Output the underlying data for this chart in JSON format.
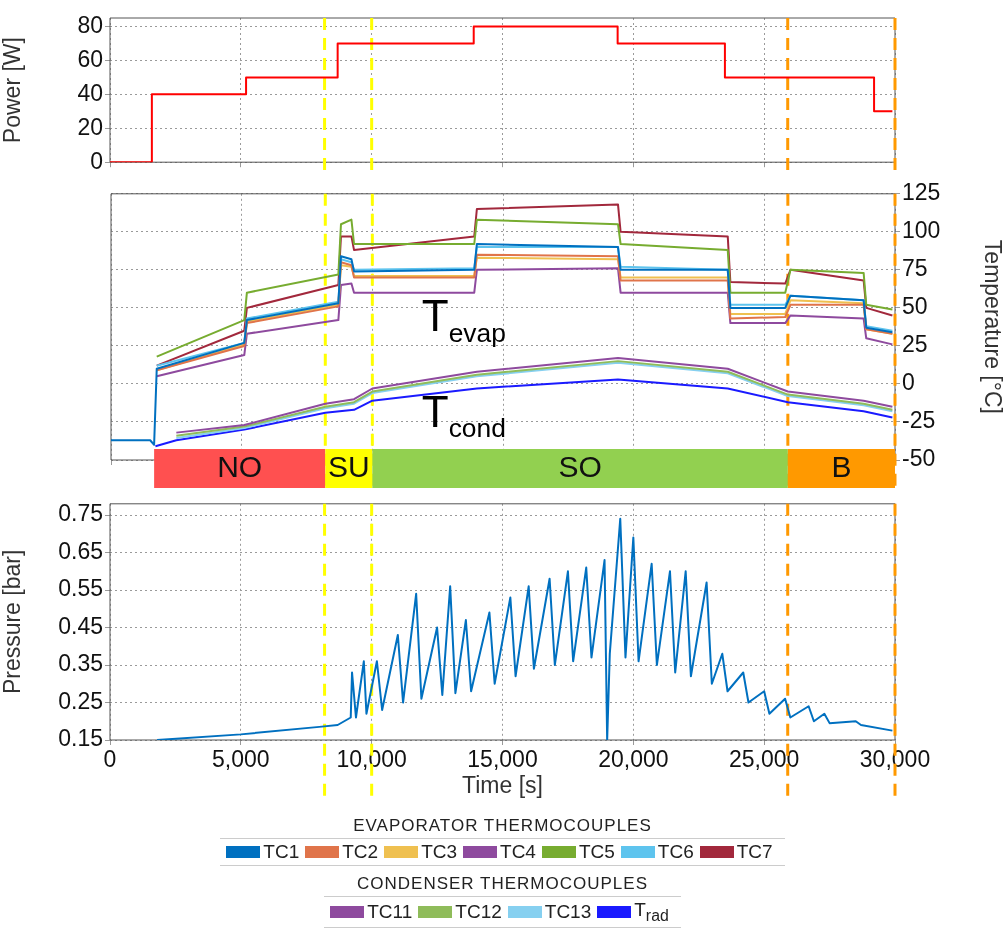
{
  "chart_data": [
    {
      "type": "step",
      "ylabel": "Power [W]",
      "xlim": [
        0,
        30000
      ],
      "xticks": [
        0,
        5000,
        10000,
        15000,
        20000,
        25000,
        30000
      ],
      "ylim": [
        0,
        85
      ],
      "yticks": [
        0,
        20,
        40,
        60,
        80
      ],
      "grid": true,
      "tick_labels": "y",
      "series": [
        {
          "color": "#ff0000",
          "x": [
            0,
            1600,
            5200,
            8700,
            13900,
            19400,
            23500,
            29200,
            29900
          ],
          "values": [
            0,
            40,
            50,
            70,
            80,
            70,
            50,
            30,
            30
          ]
        }
      ],
      "ref_lines": [
        {
          "axis": "x",
          "value": 8200,
          "color": "#ffff00",
          "line_style": "dashed"
        },
        {
          "axis": "x",
          "value": 10000,
          "color": "#ffff00",
          "line_style": "dashed"
        },
        {
          "axis": "x",
          "value": 25900,
          "color": "#ff9900",
          "line_style": "dashed"
        },
        {
          "axis": "x",
          "value": 30000,
          "color": "#ff9900",
          "line_style": "dashed"
        }
      ]
    },
    {
      "type": "line",
      "y2label": "Temperature [°C]",
      "xlim": [
        0,
        30000
      ],
      "xticks": [
        0,
        5000,
        10000,
        15000,
        20000,
        25000,
        30000
      ],
      "y2lim": [
        -50,
        125
      ],
      "y2ticks": [
        -50,
        -25,
        0,
        25,
        50,
        75,
        100,
        125
      ],
      "grid": true,
      "tick_labels": "y",
      "legend": "bottom",
      "legend_title": "EVAPORATOR THERMOCOUPLES",
      "series": [
        {
          "name": "TC1",
          "color": "#0070c0",
          "axis": "y2",
          "x": [
            0,
            1500,
            1650,
            1750,
            5100,
            5200,
            8700,
            8800,
            9200,
            9300,
            13900,
            14000,
            19400,
            19500,
            23600,
            23700,
            25800,
            26000,
            28800,
            28900,
            29900
          ],
          "values": [
            -37,
            -37,
            -40,
            10,
            27,
            42,
            53,
            84,
            82,
            74,
            75,
            92,
            90,
            75,
            75,
            50,
            50,
            58,
            55,
            37,
            34
          ]
        },
        {
          "name": "TC2",
          "color": "#e0744a",
          "axis": "y2",
          "x": [
            1750,
            5100,
            5200,
            8700,
            8800,
            9200,
            9300,
            13900,
            14000,
            19400,
            19500,
            23600,
            23700,
            25800,
            26000,
            28800,
            28900,
            29900
          ],
          "values": [
            9,
            25,
            40,
            51,
            80,
            78,
            70,
            70,
            85,
            84,
            68,
            68,
            43,
            44,
            52,
            52,
            36,
            33
          ]
        },
        {
          "name": "TC3",
          "color": "#efc050",
          "axis": "y2",
          "x": [
            1750,
            5100,
            5200,
            8700,
            8800,
            9200,
            9300,
            13900,
            14000,
            19400,
            19500,
            23600,
            23700,
            25800,
            26000,
            28800,
            28900,
            29900
          ],
          "values": [
            9,
            26,
            41,
            52,
            78,
            77,
            71,
            71,
            83,
            82,
            70,
            70,
            46,
            46,
            55,
            53,
            36,
            33
          ]
        },
        {
          "name": "TC4",
          "color": "#8e4a9e",
          "axis": "y2",
          "x": [
            1750,
            5100,
            5200,
            8700,
            8800,
            9200,
            9300,
            13900,
            14000,
            19400,
            19500,
            23600,
            23700,
            25800,
            26000,
            28800,
            28900,
            29900
          ],
          "values": [
            5,
            19,
            33,
            42,
            65,
            66,
            60,
            60,
            75,
            76,
            60,
            60,
            40,
            40,
            45,
            43,
            30,
            26
          ]
        },
        {
          "name": "TC5",
          "color": "#77ac30",
          "axis": "y2",
          "x": [
            1750,
            5100,
            5200,
            8700,
            8800,
            9200,
            9300,
            13900,
            14000,
            19400,
            19500,
            23600,
            23700,
            25800,
            26000,
            28800,
            28900,
            29900
          ],
          "values": [
            18,
            42,
            60,
            72,
            105,
            108,
            92,
            92,
            108,
            105,
            92,
            88,
            60,
            60,
            75,
            73,
            52,
            49
          ]
        },
        {
          "name": "TC6",
          "color": "#5ec4ee",
          "axis": "y2",
          "x": [
            1750,
            5100,
            5200,
            8700,
            8800,
            9200,
            9300,
            13900,
            14000,
            19400,
            19500,
            23600,
            23700,
            25800,
            26000,
            28800,
            28900,
            29900
          ],
          "values": [
            12,
            27,
            43,
            54,
            82,
            80,
            75,
            76,
            90,
            90,
            77,
            75,
            52,
            52,
            58,
            55,
            38,
            35
          ]
        },
        {
          "name": "TC7",
          "color": "#a2283c",
          "axis": "y2",
          "x": [
            1750,
            5100,
            5200,
            8700,
            8800,
            9200,
            9300,
            13900,
            14000,
            19400,
            19500,
            23600,
            23700,
            25800,
            26000,
            28800,
            28900,
            29900
          ],
          "values": [
            12,
            35,
            50,
            65,
            97,
            97,
            88,
            97,
            115,
            118,
            100,
            97,
            67,
            66,
            75,
            68,
            50,
            45
          ]
        },
        {
          "name": "TC11",
          "color": "#8e4a9e",
          "axis": "y2",
          "x": [
            2500,
            5100,
            8200,
            9300,
            10000,
            14000,
            19400,
            23600,
            25900,
            28800,
            29900
          ],
          "values": [
            -32,
            -27,
            -13,
            -10,
            -3,
            8,
            17,
            10,
            -5,
            -11,
            -15
          ]
        },
        {
          "name": "TC12",
          "color": "#8fbc5a",
          "axis": "y2",
          "x": [
            2500,
            5100,
            8200,
            9300,
            10000,
            14000,
            19400,
            23600,
            25900,
            28800,
            29900
          ],
          "values": [
            -34,
            -28,
            -15,
            -12,
            -5,
            6,
            15,
            8,
            -7,
            -13,
            -17
          ]
        },
        {
          "name": "TC13",
          "color": "#86d0f0",
          "axis": "y2",
          "x": [
            2500,
            5100,
            8200,
            9300,
            10000,
            14000,
            19400,
            23600,
            25900,
            28800,
            29900
          ],
          "values": [
            -35.5,
            -29,
            -16,
            -13,
            -6,
            5,
            14,
            7,
            -8,
            -14,
            -18
          ]
        },
        {
          "name": "T$_{rad}$",
          "color": "#1a1aff",
          "axis": "y2",
          "x": [
            1700,
            2500,
            5100,
            8200,
            9300,
            10000,
            14000,
            19400,
            23600,
            25900,
            28800,
            29900
          ],
          "values": [
            -41,
            -37,
            -30,
            -19,
            -17,
            -11,
            -3,
            3,
            -3,
            -12,
            -18,
            -22
          ]
        }
      ],
      "bands": [
        {
          "axis": "x",
          "from": 1650,
          "to": 8200,
          "label": "NO",
          "color": "#ff5050"
        },
        {
          "axis": "x",
          "from": 8200,
          "to": 10000,
          "label": "SU",
          "color": "#ffff00"
        },
        {
          "axis": "x",
          "from": 10000,
          "to": 25900,
          "label": "SO",
          "color": "#92d050"
        },
        {
          "axis": "x",
          "from": 25900,
          "to": 30000,
          "label": "B",
          "color": "#ff9900"
        }
      ],
      "ref_lines": [
        {
          "axis": "x",
          "value": 8200,
          "color": "#ffff00",
          "line_style": "dashed"
        },
        {
          "axis": "x",
          "value": 10000,
          "color": "#ffff00",
          "line_style": "dashed"
        },
        {
          "axis": "x",
          "value": 25900,
          "color": "#ff9900",
          "line_style": "dashed"
        },
        {
          "axis": "x",
          "value": 30000,
          "color": "#ff9900",
          "line_style": "dashed"
        }
      ],
      "annotations": [
        "T$_{evap}$",
        "T$_{cond}$",
        "CONDENSER THERMOCOUPLES"
      ]
    },
    {
      "type": "line",
      "xlabel": "Time [s]",
      "ylabel": "Pressure [bar]",
      "xlim": [
        0,
        30000
      ],
      "xticks": [
        {
          "value": 0,
          "label": "0"
        },
        {
          "value": 5000,
          "label": "5,000"
        },
        {
          "value": 10000,
          "label": "10,000"
        },
        {
          "value": 15000,
          "label": "15,000"
        },
        {
          "value": 20000,
          "label": "20,000"
        },
        {
          "value": 25000,
          "label": "25,000"
        },
        {
          "value": 30000,
          "label": "30,000"
        }
      ],
      "ylim": [
        0.15,
        0.78
      ],
      "yticks": [
        0.15,
        0.25,
        0.35,
        0.45,
        0.55,
        0.65,
        0.75
      ],
      "grid": true,
      "series": [
        {
          "color": "#0070c0",
          "x": [
            1800,
            5000,
            8000,
            8700,
            9200,
            9250,
            9400,
            9700,
            9800,
            10200,
            10400,
            11000,
            11200,
            11700,
            11900,
            12500,
            12700,
            13000,
            13200,
            13600,
            13800,
            14500,
            14700,
            15300,
            15500,
            16000,
            16200,
            16800,
            17000,
            17500,
            17700,
            18200,
            18400,
            18900,
            19000,
            19100,
            19500,
            19700,
            20000,
            20200,
            20700,
            20900,
            21400,
            21600,
            22000,
            22200,
            22800,
            23000,
            23400,
            23600,
            24200,
            24400,
            25000,
            25200,
            25800,
            26000,
            26700,
            26900,
            27300,
            27500,
            28500,
            28700,
            29900
          ],
          "values": [
            0.15,
            0.165,
            0.185,
            0.19,
            0.21,
            0.33,
            0.21,
            0.36,
            0.22,
            0.36,
            0.23,
            0.43,
            0.25,
            0.54,
            0.26,
            0.45,
            0.27,
            0.56,
            0.275,
            0.47,
            0.28,
            0.49,
            0.3,
            0.53,
            0.32,
            0.56,
            0.34,
            0.58,
            0.35,
            0.6,
            0.36,
            0.61,
            0.37,
            0.63,
            0.15,
            0.38,
            0.74,
            0.37,
            0.69,
            0.36,
            0.62,
            0.35,
            0.6,
            0.33,
            0.6,
            0.32,
            0.57,
            0.3,
            0.38,
            0.28,
            0.33,
            0.25,
            0.28,
            0.22,
            0.26,
            0.21,
            0.24,
            0.2,
            0.22,
            0.195,
            0.2,
            0.19,
            0.175
          ]
        }
      ],
      "ref_lines": [
        {
          "axis": "x",
          "value": 8200,
          "color": "#ffff00",
          "line_style": "dashed"
        },
        {
          "axis": "x",
          "value": 10000,
          "color": "#ffff00",
          "line_style": "dashed"
        },
        {
          "axis": "x",
          "value": 25900,
          "color": "#ff9900",
          "line_style": "dashed"
        },
        {
          "axis": "x",
          "value": 30000,
          "color": "#ff9900",
          "line_style": "dashed"
        }
      ]
    }
  ]
}
